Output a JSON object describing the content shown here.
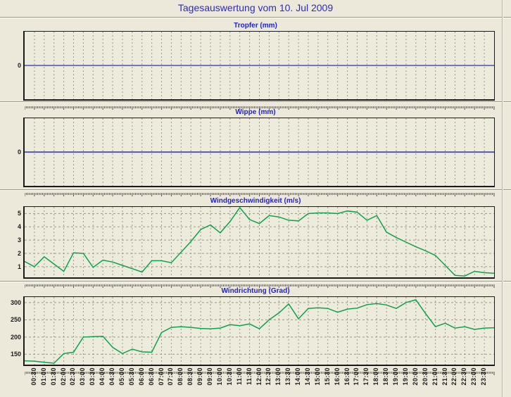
{
  "header": {
    "title": "Tagesauswertung vom 10. Jul 2009"
  },
  "colors": {
    "page_background": "#ece9da",
    "plot_background": "#edebdc",
    "title_blue": "#2a2ac8",
    "chart_title_blue": "#2222c8",
    "grid_gray": "#9b9889",
    "axis_black": "#1a1a1a",
    "tropfer_line": "#000099",
    "wippe_line": "#5a5ace",
    "wind_line": "#0fa24d"
  },
  "chart_data": {
    "type": "line",
    "x_unit": "time_of_day",
    "x_step_minutes": 30,
    "x": [
      "00:00",
      "00:30",
      "01:00",
      "01:30",
      "02:00",
      "02:30",
      "03:00",
      "03:30",
      "04:00",
      "04:30",
      "05:00",
      "05:30",
      "06:00",
      "06:30",
      "07:00",
      "07:30",
      "08:00",
      "08:30",
      "09:00",
      "09:30",
      "10:00",
      "10:30",
      "11:00",
      "11:30",
      "12:00",
      "12:30",
      "13:00",
      "13:30",
      "14:00",
      "14:30",
      "15:00",
      "15:30",
      "16:00",
      "16:30",
      "17:00",
      "17:30",
      "18:00",
      "18:30",
      "19:00",
      "19:30",
      "20:00",
      "20:30",
      "21:00",
      "21:30",
      "22:00",
      "22:30",
      "23:00",
      "23:30",
      "24:00"
    ],
    "x_tick_label_first": "00:30",
    "x_tick_label_last": "23:30",
    "grid": "dashed",
    "legend": "none",
    "charts": [
      {
        "title": "Tropfer (mm)",
        "y_ticks": [
          0
        ],
        "grid_values": [],
        "ymin": -1,
        "ymax": 1,
        "line_color": "#000099",
        "line_width": 1,
        "values": [
          0,
          0,
          0,
          0,
          0,
          0,
          0,
          0,
          0,
          0,
          0,
          0,
          0,
          0,
          0,
          0,
          0,
          0,
          0,
          0,
          0,
          0,
          0,
          0,
          0,
          0,
          0,
          0,
          0,
          0,
          0,
          0,
          0,
          0,
          0,
          0,
          0,
          0,
          0,
          0,
          0,
          0,
          0,
          0,
          0,
          0,
          0,
          0,
          0
        ]
      },
      {
        "title": "Wippe (mm)",
        "y_ticks": [
          0
        ],
        "grid_values": [],
        "ymin": -1,
        "ymax": 1,
        "line_color": "#5a5ace",
        "line_width": 2,
        "values": [
          0,
          0,
          0,
          0,
          0,
          0,
          0,
          0,
          0,
          0,
          0,
          0,
          0,
          0,
          0,
          0,
          0,
          0,
          0,
          0,
          0,
          0,
          0,
          0,
          0,
          0,
          0,
          0,
          0,
          0,
          0,
          0,
          0,
          0,
          0,
          0,
          0,
          0,
          0,
          0,
          0,
          0,
          0,
          0,
          0,
          0,
          0,
          0,
          0
        ]
      },
      {
        "title": "Windgeschwindigkeit (m/s)",
        "y_ticks": [
          1,
          2,
          3,
          4,
          5
        ],
        "grid_values": [
          1,
          2,
          3,
          4,
          5
        ],
        "ymin": 0.2,
        "ymax": 5.5,
        "line_color": "#0fa24d",
        "line_width": 1.5,
        "values": [
          1.4,
          1.0,
          1.75,
          1.2,
          0.65,
          2.05,
          2.0,
          0.95,
          1.5,
          1.35,
          1.1,
          0.85,
          0.6,
          1.45,
          1.45,
          1.3,
          2.1,
          2.9,
          3.8,
          4.15,
          3.55,
          4.4,
          5.45,
          4.55,
          4.25,
          4.85,
          4.75,
          4.5,
          4.45,
          5.0,
          5.05,
          5.05,
          5.0,
          5.2,
          5.1,
          4.5,
          4.85,
          3.6,
          3.2,
          2.85,
          2.5,
          2.2,
          1.85,
          1.1,
          0.35,
          0.3,
          0.65,
          0.55,
          0.5
        ]
      },
      {
        "title": "Windrichtung (Grad)",
        "y_ticks": [
          150,
          200,
          250,
          300
        ],
        "grid_values": [
          150,
          200,
          250,
          300
        ],
        "ymin": 120,
        "ymax": 316,
        "line_color": "#0fa24d",
        "line_width": 1.5,
        "values": [
          131,
          130,
          127,
          124,
          152,
          156,
          200,
          201,
          202,
          170,
          152,
          165,
          157,
          156,
          213,
          228,
          230,
          228,
          225,
          224,
          226,
          236,
          233,
          238,
          224,
          250,
          270,
          296,
          253,
          283,
          285,
          283,
          272,
          281,
          284,
          294,
          297,
          293,
          283,
          300,
          308,
          268,
          230,
          240,
          226,
          230,
          222,
          226,
          227
        ]
      }
    ]
  }
}
